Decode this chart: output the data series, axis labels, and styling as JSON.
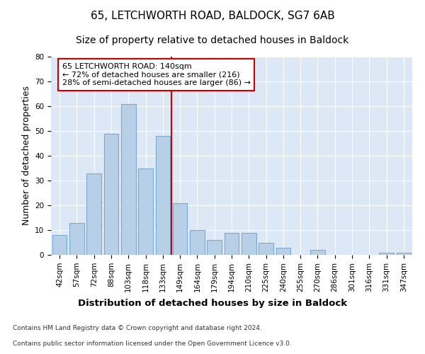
{
  "title": "65, LETCHWORTH ROAD, BALDOCK, SG7 6AB",
  "subtitle": "Size of property relative to detached houses in Baldock",
  "xlabel": "Distribution of detached houses by size in Baldock",
  "ylabel": "Number of detached properties",
  "categories": [
    "42sqm",
    "57sqm",
    "72sqm",
    "88sqm",
    "103sqm",
    "118sqm",
    "133sqm",
    "149sqm",
    "164sqm",
    "179sqm",
    "194sqm",
    "210sqm",
    "225sqm",
    "240sqm",
    "255sqm",
    "270sqm",
    "286sqm",
    "301sqm",
    "316sqm",
    "331sqm",
    "347sqm"
  ],
  "values": [
    8,
    13,
    33,
    49,
    61,
    35,
    48,
    21,
    10,
    6,
    9,
    9,
    5,
    3,
    0,
    2,
    0,
    0,
    0,
    1,
    1
  ],
  "bar_color": "#b8cfe8",
  "bar_edge_color": "#7aaad0",
  "vline_x": 6.5,
  "vline_color": "#cc0000",
  "annotation_line1": "65 LETCHWORTH ROAD: 140sqm",
  "annotation_line2": "← 72% of detached houses are smaller (216)",
  "annotation_line3": "28% of semi-detached houses are larger (86) →",
  "annotation_box_edgecolor": "#cc0000",
  "ylim": [
    0,
    80
  ],
  "yticks": [
    0,
    10,
    20,
    30,
    40,
    50,
    60,
    70,
    80
  ],
  "fig_bg": "#ffffff",
  "axes_bg": "#dce8f5",
  "grid_color": "#ffffff",
  "title_fontsize": 11,
  "subtitle_fontsize": 10,
  "ylabel_fontsize": 9,
  "xlabel_fontsize": 9.5,
  "tick_fontsize": 7.5,
  "annot_fontsize": 8,
  "footnote_fontsize": 6.5
}
